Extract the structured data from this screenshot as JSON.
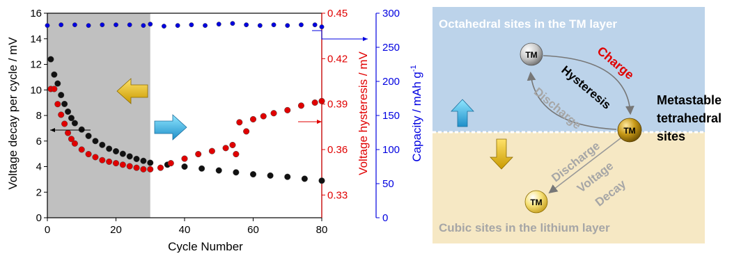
{
  "chart_data": {
    "type": "scatter",
    "xlabel": "Cycle Number",
    "x_ticks": [
      "0",
      "20",
      "40",
      "60",
      "80"
    ],
    "xlim": [
      0,
      80
    ],
    "shaded_region": [
      0,
      30
    ],
    "axes": {
      "left": {
        "label": "Voltage decay per cycle / mV",
        "ylim": [
          0,
          16
        ],
        "ticks": [
          "0",
          "2",
          "4",
          "6",
          "8",
          "10",
          "12",
          "14",
          "16"
        ],
        "color": "#000000"
      },
      "right1": {
        "label": "Voltage hysteresis / mV",
        "ylim": [
          0.315,
          0.45
        ],
        "ticks": [
          "0.33",
          "0.36",
          "0.39",
          "0.42",
          "0.45"
        ],
        "color": "#e00000"
      },
      "right2": {
        "label_main": "Capacity / mAh g",
        "label_sup": "-1",
        "ylim": [
          0,
          300
        ],
        "ticks": [
          "0",
          "50",
          "100",
          "150",
          "200",
          "250",
          "300"
        ],
        "color": "#0000e0"
      }
    },
    "series": [
      {
        "axis": "left",
        "color": "#111111",
        "x": [
          1,
          2,
          3,
          4,
          5,
          6,
          7,
          8,
          10,
          12,
          14,
          16,
          18,
          20,
          22,
          24,
          26,
          28,
          30,
          35,
          40,
          45,
          50,
          55,
          60,
          65,
          70,
          75,
          80
        ],
        "y": [
          12.4,
          11.2,
          10.5,
          9.6,
          8.9,
          8.3,
          7.8,
          7.4,
          6.9,
          6.4,
          6.0,
          5.7,
          5.4,
          5.2,
          5.0,
          4.8,
          4.6,
          4.45,
          4.3,
          4.15,
          4.0,
          3.85,
          3.7,
          3.55,
          3.4,
          3.3,
          3.2,
          3.05,
          2.9
        ]
      },
      {
        "axis": "right1",
        "color": "#e00000",
        "x": [
          1,
          2,
          3,
          4,
          5,
          6,
          7,
          8,
          10,
          12,
          14,
          16,
          18,
          20,
          22,
          24,
          26,
          28,
          30,
          33,
          36,
          40,
          44,
          48,
          52,
          54,
          55,
          56,
          58,
          60,
          63,
          66,
          70,
          74,
          78,
          80
        ],
        "y": [
          0.4,
          0.4,
          0.39,
          0.383,
          0.377,
          0.371,
          0.367,
          0.364,
          0.36,
          0.357,
          0.355,
          0.353,
          0.352,
          0.351,
          0.35,
          0.349,
          0.348,
          0.347,
          0.347,
          0.348,
          0.351,
          0.354,
          0.357,
          0.359,
          0.361,
          0.363,
          0.357,
          0.378,
          0.372,
          0.38,
          0.382,
          0.384,
          0.386,
          0.389,
          0.391,
          0.392
        ]
      },
      {
        "axis": "right2",
        "color": "#0000e0",
        "x": [
          0,
          4,
          8,
          12,
          16,
          20,
          24,
          28,
          30,
          34,
          38,
          42,
          46,
          50,
          54,
          58,
          62,
          66,
          70,
          74,
          78,
          80
        ],
        "y": [
          282,
          283,
          283,
          282,
          283,
          283,
          283,
          282,
          284,
          281,
          282,
          283,
          282,
          284,
          285,
          283,
          282,
          283,
          282,
          283,
          283,
          280
        ]
      }
    ]
  },
  "diagram": {
    "top_title": "Octahedral sites in the TM layer",
    "bottom_title": "Cubic sites in the lithium layer",
    "tm_label": "TM",
    "charge": "Charge",
    "hysteresis": "Hysteresis",
    "discharge_1": "Discharge",
    "discharge_2": "Discharge",
    "voltage": "Voltage",
    "decay": "Decay",
    "metastable_1": "Metastable",
    "metastable_2": "tetrahedral",
    "metastable_3": "sites",
    "colors": {
      "top_bg": "#bcd3ea",
      "bottom_bg": "#f6e8c4",
      "charge": "#e00000",
      "gray_text": "#a6a6a6"
    }
  }
}
